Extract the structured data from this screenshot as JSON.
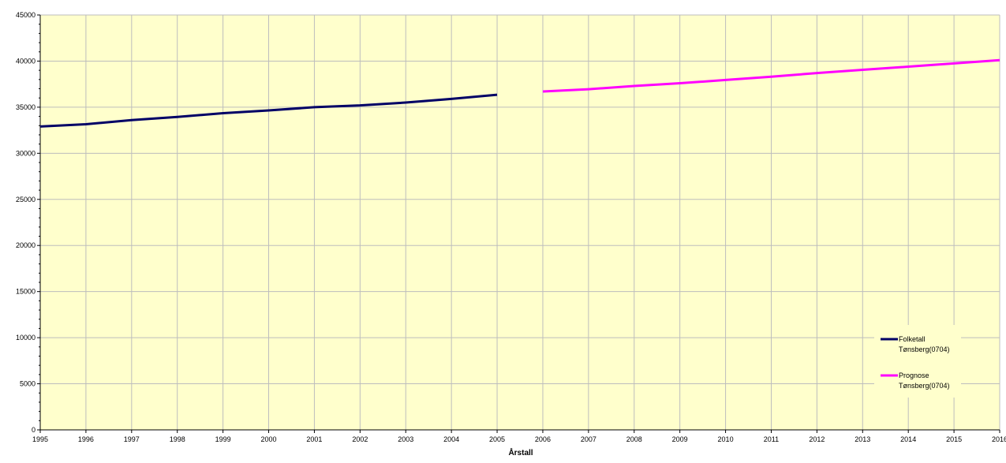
{
  "chart_data": {
    "type": "line",
    "title": "",
    "xlabel": "Årstall",
    "ylabel": "",
    "xlim": [
      1995,
      2016
    ],
    "ylim": [
      0,
      45000
    ],
    "y_ticks": [
      0,
      5000,
      10000,
      15000,
      20000,
      25000,
      30000,
      35000,
      40000,
      45000
    ],
    "x_ticks": [
      1995,
      1996,
      1997,
      1998,
      1999,
      2000,
      2001,
      2002,
      2003,
      2004,
      2005,
      2006,
      2007,
      2008,
      2009,
      2010,
      2011,
      2012,
      2013,
      2014,
      2015,
      2016
    ],
    "grid": true,
    "background_color": "#ffffcc",
    "legend_position": "bottom-right",
    "series": [
      {
        "name": "Folketall Tønsberg(0704)",
        "color": "#000066",
        "x": [
          1995,
          1996,
          1997,
          1998,
          1999,
          2000,
          2001,
          2002,
          2003,
          2004,
          2005
        ],
        "y": [
          32900,
          33150,
          33600,
          33950,
          34350,
          34650,
          35000,
          35200,
          35500,
          35900,
          36350
        ]
      },
      {
        "name": "Prognose Tønsberg(0704)",
        "color": "#ff00ff",
        "x": [
          2006,
          2007,
          2008,
          2009,
          2010,
          2011,
          2012,
          2013,
          2014,
          2015,
          2016
        ],
        "y": [
          36700,
          36950,
          37300,
          37600,
          37950,
          38300,
          38700,
          39050,
          39400,
          39750,
          40100
        ]
      }
    ]
  }
}
